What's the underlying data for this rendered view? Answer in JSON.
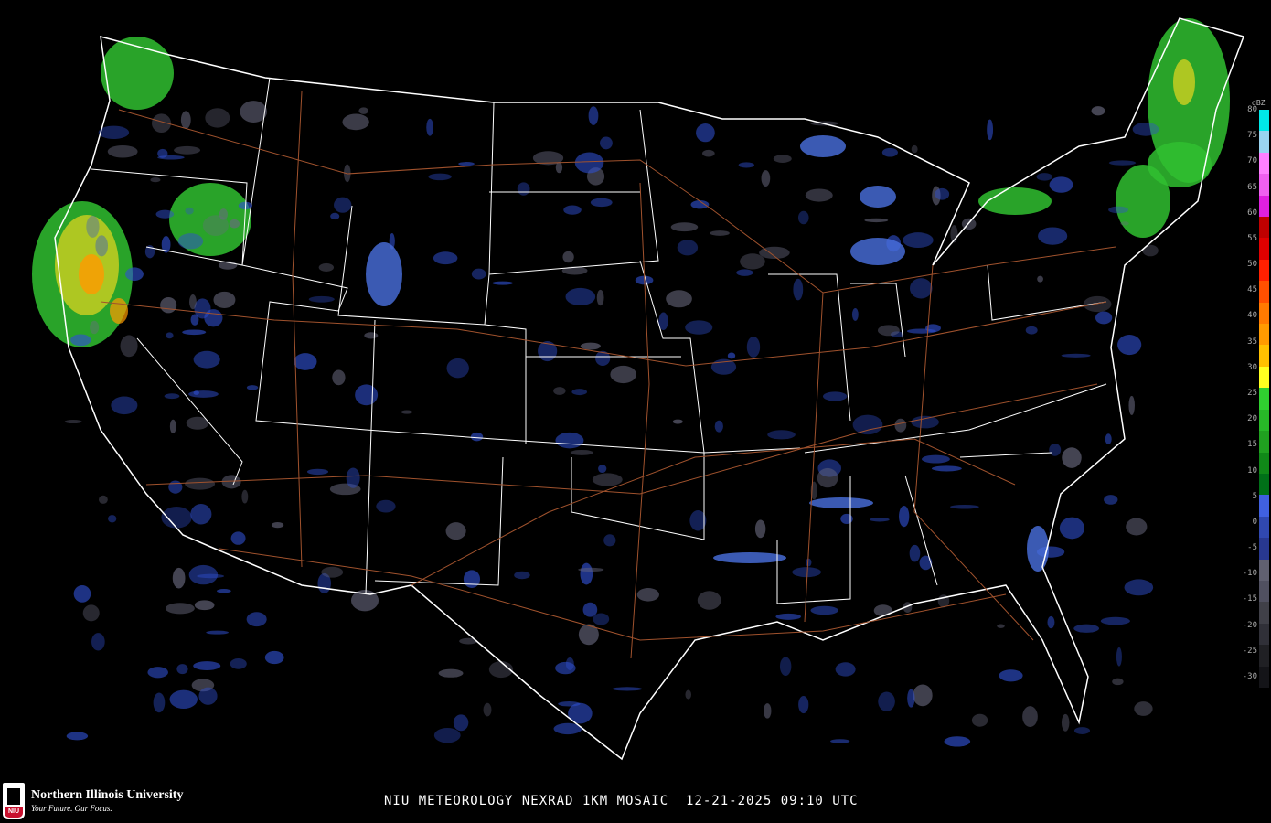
{
  "title": "NIU METEOROLOGY NEXRAD 1KM MOSAIC  12-21-2025 09:10 UTC",
  "legend": {
    "unit": "dBZ",
    "ticks": [
      "80",
      "75",
      "70",
      "65",
      "60",
      "55",
      "50",
      "45",
      "40",
      "35",
      "30",
      "25",
      "20",
      "15",
      "10",
      "5",
      "0",
      "-5",
      "-10",
      "-15",
      "-20",
      "-25",
      "-30"
    ],
    "colors": [
      "#00e8e8",
      "#9ad4f0",
      "#ff80ff",
      "#f060f0",
      "#e020e0",
      "#c00000",
      "#e00000",
      "#ff2000",
      "#ff5000",
      "#ff7a00",
      "#ff9a00",
      "#ffc000",
      "#ffff20",
      "#30d030",
      "#28b828",
      "#20a020",
      "#108818",
      "#007018",
      "#4060e0",
      "#3048b0",
      "#283890",
      "#606070",
      "#505060",
      "#404048",
      "#303038",
      "#202024",
      "#141418"
    ]
  },
  "colors": {
    "border": "#ffffff",
    "highways": "#a0522d",
    "background": "#000000"
  },
  "logo": {
    "name": "Northern Illinois University",
    "tagline": "Your Future. Our Focus.",
    "badge": "NIU"
  }
}
